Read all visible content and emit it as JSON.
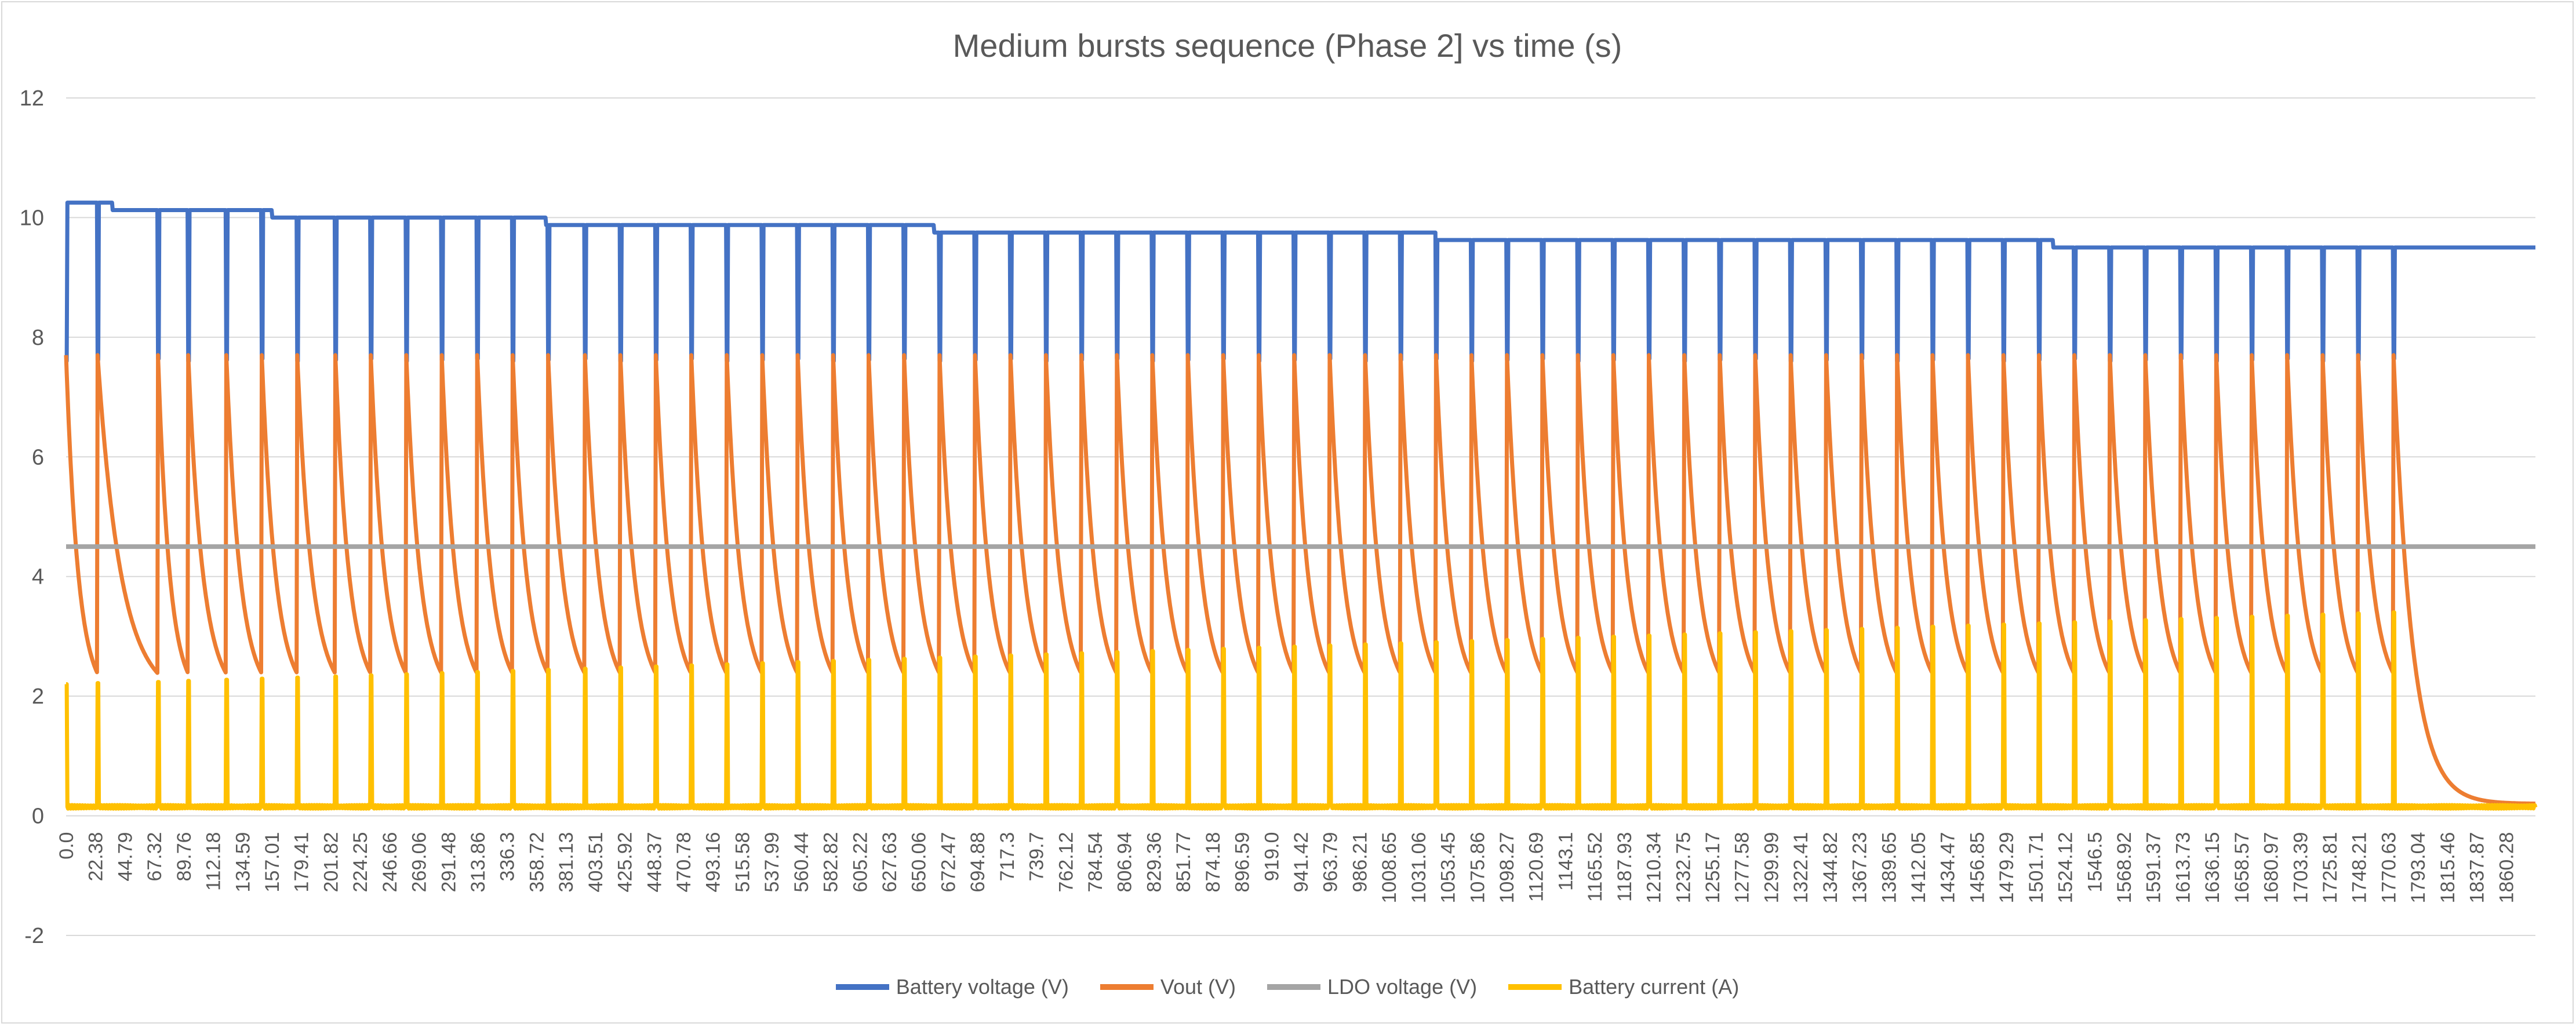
{
  "chart_data": {
    "type": "line",
    "title": "Medium bursts sequence (Phase 2] vs time (s)",
    "xlabel": "",
    "ylabel": "",
    "ylim": [
      -2,
      12
    ],
    "yticks": [
      "-2",
      "0",
      "2",
      "4",
      "6",
      "8",
      "10",
      "12"
    ],
    "gridlines": "horizontal",
    "legend_position": "bottom",
    "x_tick_labels": [
      "0.0",
      "22.38",
      "44.79",
      "67.32",
      "89.76",
      "112.18",
      "134.59",
      "157.01",
      "179.41",
      "201.82",
      "224.25",
      "246.66",
      "269.06",
      "291.48",
      "313.86",
      "336.3",
      "358.72",
      "381.13",
      "403.51",
      "425.92",
      "448.37",
      "470.78",
      "493.16",
      "515.58",
      "537.99",
      "560.44",
      "582.82",
      "605.22",
      "627.63",
      "650.06",
      "672.47",
      "694.88",
      "717.3",
      "739.7",
      "762.12",
      "784.54",
      "806.94",
      "829.36",
      "851.77",
      "874.18",
      "896.59",
      "919.0",
      "941.42",
      "963.79",
      "986.21",
      "1008.65",
      "1031.06",
      "1053.45",
      "1075.86",
      "1098.27",
      "1120.69",
      "1143.1",
      "1165.52",
      "1187.93",
      "1210.34",
      "1232.75",
      "1255.17",
      "1277.58",
      "1299.99",
      "1322.41",
      "1344.82",
      "1367.23",
      "1389.65",
      "1412.05",
      "1434.47",
      "1456.85",
      "1479.29",
      "1501.71",
      "1524.12",
      "1546.5",
      "1568.92",
      "1591.37",
      "1613.73",
      "1636.15",
      "1658.57",
      "1680.97",
      "1703.39",
      "1725.81",
      "1748.21",
      "1770.63",
      "1793.04",
      "1815.46",
      "1837.87",
      "1860.28"
    ],
    "xlim": [
      0,
      1880
    ],
    "burst_times": [
      0,
      24,
      70,
      93,
      122,
      149,
      176,
      205,
      232,
      259,
      286,
      313,
      340,
      367,
      395,
      422,
      449,
      476,
      503,
      530,
      557,
      584,
      611,
      638,
      665,
      692,
      719,
      746,
      773,
      800,
      827,
      854,
      881,
      908,
      935,
      962,
      989,
      1016,
      1043,
      1070,
      1097,
      1124,
      1151,
      1178,
      1205,
      1232,
      1259,
      1286,
      1313,
      1340,
      1367,
      1394,
      1421,
      1448,
      1475,
      1502,
      1529,
      1556,
      1583,
      1610,
      1637,
      1664,
      1691,
      1718,
      1745,
      1772
    ],
    "series": [
      {
        "name": "Battery voltage (V)",
        "color": "#4472c4",
        "baseline_start": 10.3,
        "baseline_end": 9.5,
        "burst_min": 7.6
      },
      {
        "name": "Vout (V)",
        "color": "#ed7d31",
        "peak": 7.7,
        "trough": 1.95,
        "tail_end": 0.2
      },
      {
        "name": "LDO voltage (V)",
        "color": "#a5a5a5",
        "value": 4.5
      },
      {
        "name": "Battery current (A)",
        "color": "#ffc000",
        "baseline": 0.15,
        "peak_start": 2.2,
        "peak_end": 3.4
      }
    ]
  }
}
